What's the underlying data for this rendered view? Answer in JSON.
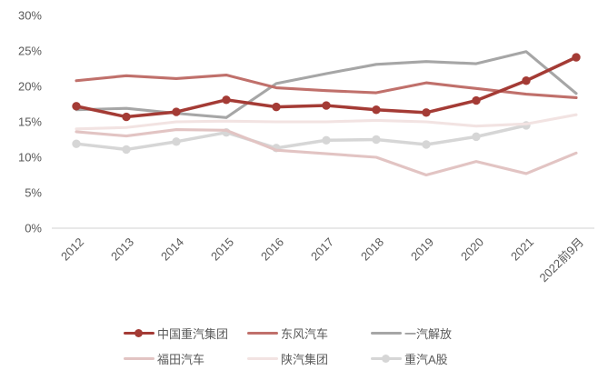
{
  "chart_data": {
    "type": "line",
    "title": "",
    "xlabel": "",
    "ylabel": "",
    "x_categories": [
      "2012",
      "2013",
      "2014",
      "2015",
      "2016",
      "2017",
      "2018",
      "2019",
      "2020",
      "2021",
      "2022前9月"
    ],
    "y_ticks": [
      "0%",
      "5%",
      "10%",
      "15%",
      "20%",
      "25%",
      "30%"
    ],
    "ylim": [
      0,
      30
    ],
    "grid": false,
    "legend_position": "bottom",
    "series": [
      {
        "name": "中国重汽集团",
        "color": "#A43B35",
        "marker": true,
        "values": [
          17.2,
          15.7,
          16.4,
          18.1,
          17.1,
          17.3,
          16.7,
          16.3,
          18.0,
          20.8,
          24.1
        ]
      },
      {
        "name": "东风汽车",
        "color": "#C0706B",
        "marker": false,
        "values": [
          20.8,
          21.5,
          21.1,
          21.6,
          19.8,
          19.4,
          19.1,
          20.5,
          19.7,
          18.9,
          18.4
        ]
      },
      {
        "name": "一汽解放",
        "color": "#A6A6A6",
        "marker": false,
        "values": [
          16.7,
          16.9,
          16.2,
          15.6,
          20.4,
          21.8,
          23.1,
          23.5,
          23.2,
          24.9,
          19.0
        ]
      },
      {
        "name": "福田汽车",
        "color": "#E2C4C3",
        "marker": false,
        "values": [
          13.6,
          13.0,
          13.9,
          13.8,
          11.0,
          10.5,
          10.0,
          7.5,
          9.4,
          7.7,
          10.6
        ]
      },
      {
        "name": "陕汽集团",
        "color": "#F2E3E2",
        "marker": false,
        "values": [
          14.0,
          14.2,
          15.0,
          15.1,
          15.0,
          15.0,
          15.2,
          15.0,
          14.4,
          14.7,
          16.0
        ]
      },
      {
        "name": "重汽A股",
        "color": "#D6D6D6",
        "marker": true,
        "values": [
          11.9,
          11.1,
          12.2,
          13.5,
          11.3,
          12.4,
          12.5,
          11.8,
          12.9,
          14.5,
          null
        ]
      }
    ]
  },
  "colors": {
    "axis_text": "#595959",
    "axis_line": "#D9D9D9",
    "background": "#FFFFFF"
  }
}
